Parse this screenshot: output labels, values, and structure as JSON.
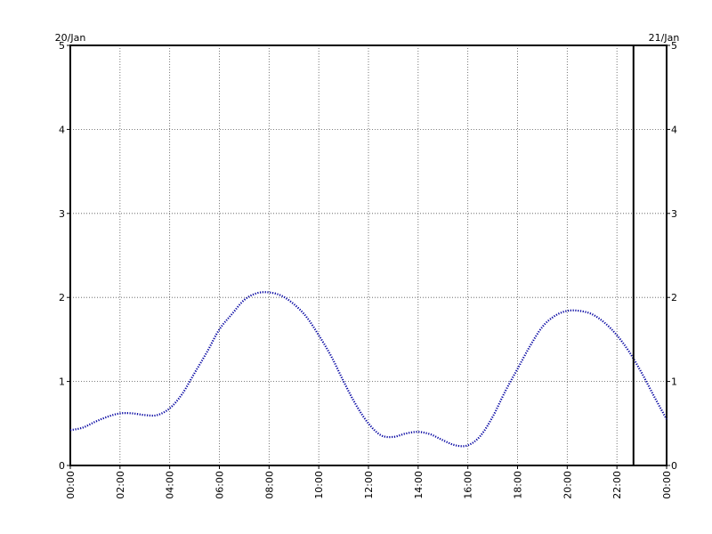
{
  "chart_data": {
    "type": "line",
    "title": "",
    "xlabel": "",
    "ylabel": "",
    "date_labels": {
      "start": "20/Jan",
      "end": "21/Jan"
    },
    "x_ticks": [
      "00:00",
      "02:00",
      "04:00",
      "06:00",
      "08:00",
      "10:00",
      "12:00",
      "14:00",
      "16:00",
      "18:00",
      "20:00",
      "22:00",
      "00:00"
    ],
    "y_ticks": [
      "0",
      "1",
      "2",
      "3",
      "4",
      "5"
    ],
    "xlim_hours": [
      0,
      24
    ],
    "ylim": [
      0,
      5
    ],
    "grid": true,
    "marker_time": "22:40",
    "series": [
      {
        "color": "#0000a0",
        "style": "dotted",
        "x_hours": [
          0,
          0.5,
          1,
          1.5,
          2,
          2.5,
          3,
          3.5,
          4,
          4.5,
          5,
          5.5,
          6,
          6.5,
          7,
          7.5,
          8,
          8.5,
          9,
          9.5,
          10,
          10.5,
          11,
          11.5,
          12,
          12.5,
          13,
          13.5,
          14,
          14.5,
          15,
          15.5,
          16,
          16.5,
          17,
          17.5,
          18,
          18.5,
          19,
          19.5,
          20,
          20.5,
          21,
          21.5,
          22,
          22.5,
          23,
          23.5,
          24
        ],
        "values": [
          0.42,
          0.45,
          0.52,
          0.58,
          0.62,
          0.62,
          0.6,
          0.6,
          0.68,
          0.85,
          1.1,
          1.35,
          1.62,
          1.8,
          1.97,
          2.05,
          2.06,
          2.02,
          1.92,
          1.77,
          1.55,
          1.3,
          1.0,
          0.72,
          0.5,
          0.36,
          0.34,
          0.38,
          0.4,
          0.37,
          0.3,
          0.24,
          0.24,
          0.35,
          0.58,
          0.88,
          1.15,
          1.42,
          1.65,
          1.78,
          1.84,
          1.84,
          1.8,
          1.7,
          1.55,
          1.35,
          1.1,
          0.82,
          0.55
        ]
      }
    ]
  }
}
